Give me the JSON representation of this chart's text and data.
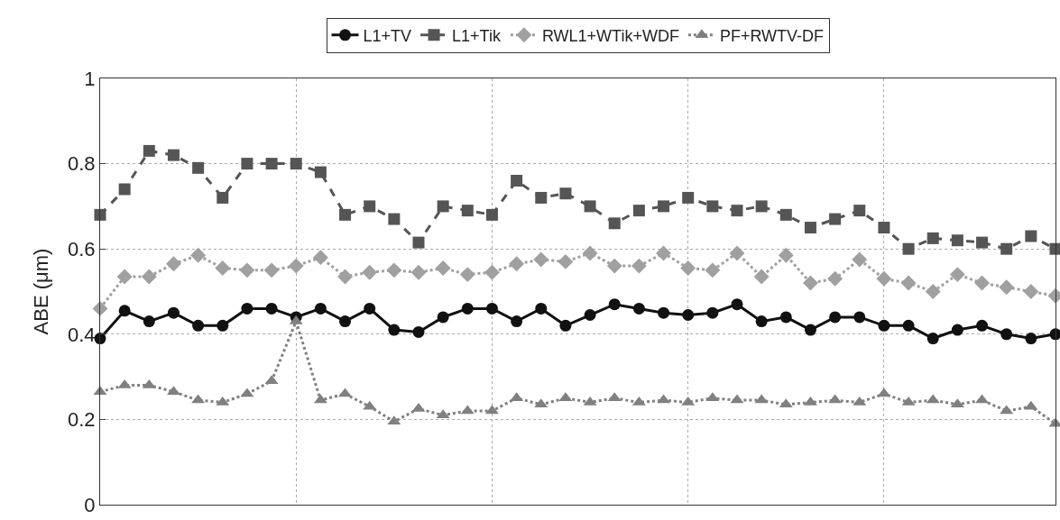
{
  "chart_data": {
    "type": "line",
    "ylabel": "ABE (μm)",
    "ylim": [
      0,
      1
    ],
    "yticks": [
      0,
      0.2,
      0.4,
      0.6,
      0.8,
      1
    ],
    "grid": true,
    "legend": "top",
    "categories": [
      null,
      null,
      null,
      null,
      null,
      null,
      null,
      null,
      null,
      null,
      null,
      null,
      null,
      null,
      null,
      null,
      null,
      null,
      null,
      null,
      null,
      null,
      null,
      null,
      null,
      null,
      null,
      null,
      null,
      null,
      null,
      null,
      null,
      null,
      null,
      null,
      null,
      null,
      null,
      null
    ],
    "series": [
      {
        "name": "L1+TV",
        "color": "#111111",
        "marker": "circle",
        "line_style": "solid",
        "values": [
          0.39,
          0.455,
          0.43,
          0.45,
          0.42,
          0.42,
          0.46,
          0.46,
          0.44,
          0.46,
          0.43,
          0.46,
          0.41,
          0.405,
          0.44,
          0.46,
          0.46,
          0.43,
          0.46,
          0.42,
          0.445,
          0.47,
          0.46,
          0.45,
          0.445,
          0.45,
          0.47,
          0.43,
          0.44,
          0.41,
          0.44,
          0.44,
          0.42,
          0.42,
          0.39,
          0.41,
          0.42,
          0.4,
          0.39,
          0.4
        ]
      },
      {
        "name": "L1+Tik",
        "color": "#555555",
        "marker": "square",
        "line_style": "dashed",
        "values": [
          0.68,
          0.74,
          0.83,
          0.82,
          0.79,
          0.72,
          0.8,
          0.8,
          0.8,
          0.78,
          0.68,
          0.7,
          0.67,
          0.615,
          0.7,
          0.69,
          0.68,
          0.76,
          0.72,
          0.73,
          0.7,
          0.66,
          0.69,
          0.7,
          0.72,
          0.7,
          0.69,
          0.7,
          0.68,
          0.65,
          0.67,
          0.69,
          0.65,
          0.6,
          0.625,
          0.62,
          0.615,
          0.6,
          0.63,
          0.6
        ]
      },
      {
        "name": "RWL1+WTik+WDF",
        "color": "#a0a0a0",
        "marker": "diamond",
        "line_style": "dotted",
        "values": [
          0.46,
          0.535,
          0.535,
          0.565,
          0.585,
          0.555,
          0.55,
          0.55,
          0.56,
          0.58,
          0.535,
          0.545,
          0.55,
          0.545,
          0.555,
          0.54,
          0.545,
          0.565,
          0.575,
          0.57,
          0.59,
          0.56,
          0.56,
          0.59,
          0.555,
          0.55,
          0.59,
          0.535,
          0.585,
          0.52,
          0.53,
          0.575,
          0.53,
          0.52,
          0.5,
          0.54,
          0.52,
          0.51,
          0.5,
          0.49
        ]
      },
      {
        "name": "PF+RWTV-DF",
        "color": "#808080",
        "marker": "triangle",
        "line_style": "dotted",
        "values": [
          0.265,
          0.28,
          0.28,
          0.265,
          0.245,
          0.24,
          0.26,
          0.29,
          0.43,
          0.245,
          0.26,
          0.23,
          0.195,
          0.225,
          0.21,
          0.22,
          0.22,
          0.25,
          0.235,
          0.25,
          0.24,
          0.25,
          0.24,
          0.245,
          0.24,
          0.25,
          0.245,
          0.245,
          0.235,
          0.24,
          0.245,
          0.24,
          0.26,
          0.24,
          0.245,
          0.235,
          0.245,
          0.22,
          0.23,
          0.19
        ]
      }
    ]
  }
}
